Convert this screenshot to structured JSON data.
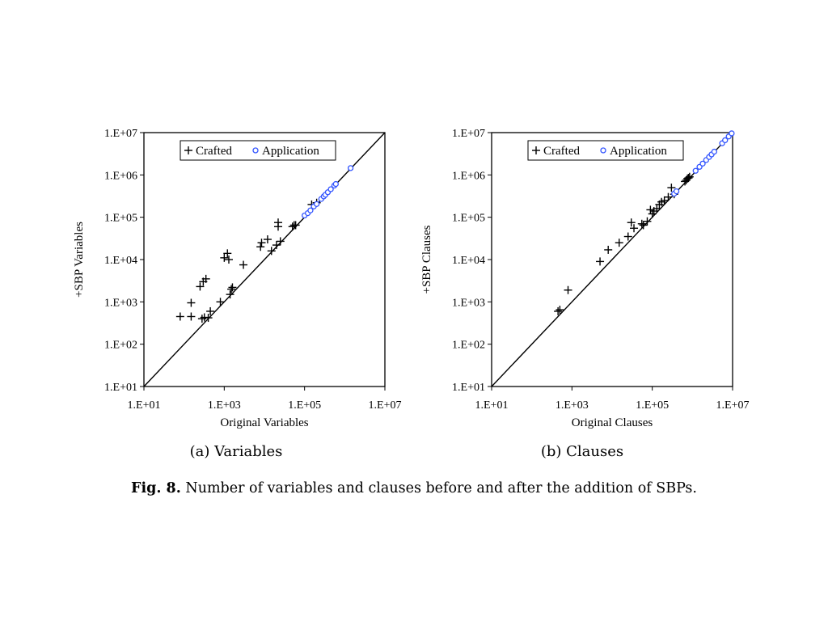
{
  "chart_data": [
    {
      "type": "scatter",
      "subcaption": "(a) Variables",
      "xlabel": "Original Variables",
      "ylabel": "+SBP Variables",
      "xscale": "log",
      "yscale": "log",
      "xlim": [
        10,
        10000000
      ],
      "ylim": [
        10,
        10000000
      ],
      "xticks": [
        "1.E+01",
        "1.E+03",
        "1.E+05",
        "1.E+07"
      ],
      "yticks": [
        "1.E+01",
        "1.E+02",
        "1.E+03",
        "1.E+04",
        "1.E+05",
        "1.E+06",
        "1.E+07"
      ],
      "diagonal": "y = x",
      "legend": {
        "position": "top",
        "entries": [
          "Crafted",
          "Application"
        ]
      },
      "series": [
        {
          "name": "Crafted",
          "marker": "plus",
          "color": "#000000",
          "points": [
            [
              80,
              450
            ],
            [
              150,
              950
            ],
            [
              150,
              450
            ],
            [
              250,
              2300
            ],
            [
              300,
              3000
            ],
            [
              350,
              3500
            ],
            [
              280,
              400
            ],
            [
              320,
              430
            ],
            [
              400,
              420
            ],
            [
              450,
              600
            ],
            [
              800,
              1000
            ],
            [
              1000,
              11000
            ],
            [
              1200,
              14000
            ],
            [
              1300,
              10000
            ],
            [
              1400,
              1500
            ],
            [
              1500,
              2000
            ],
            [
              1600,
              2200
            ],
            [
              3000,
              7500
            ],
            [
              8000,
              20000
            ],
            [
              8500,
              25000
            ],
            [
              12000,
              30000
            ],
            [
              15000,
              16000
            ],
            [
              20000,
              22000
            ],
            [
              22000,
              75000
            ],
            [
              22000,
              60000
            ],
            [
              25000,
              27000
            ],
            [
              50000,
              60000
            ],
            [
              55000,
              65000
            ],
            [
              60000,
              65000
            ],
            [
              150000,
              200000
            ],
            [
              200000,
              220000
            ]
          ]
        },
        {
          "name": "Application",
          "marker": "circle",
          "color": "#3355ff",
          "points": [
            [
              100000,
              110000
            ],
            [
              120000,
              125000
            ],
            [
              140000,
              145000
            ],
            [
              170000,
              180000
            ],
            [
              200000,
              205000
            ],
            [
              260000,
              270000
            ],
            [
              300000,
              310000
            ],
            [
              330000,
              340000
            ],
            [
              380000,
              390000
            ],
            [
              450000,
              460000
            ],
            [
              550000,
              560000
            ],
            [
              600000,
              610000
            ],
            [
              1400000,
              1450000
            ]
          ]
        }
      ]
    },
    {
      "type": "scatter",
      "subcaption": "(b) Clauses",
      "xlabel": "Original Clauses",
      "ylabel": "+SBP Clauses",
      "xscale": "log",
      "yscale": "log",
      "xlim": [
        10,
        10000000
      ],
      "ylim": [
        10,
        10000000
      ],
      "xticks": [
        "1.E+01",
        "1.E+03",
        "1.E+05",
        "1.E+07"
      ],
      "yticks": [
        "1.E+01",
        "1.E+02",
        "1.E+03",
        "1.E+04",
        "1.E+05",
        "1.E+06",
        "1.E+07"
      ],
      "diagonal": "y = x",
      "legend": {
        "position": "top",
        "entries": [
          "Crafted",
          "Application"
        ]
      },
      "series": [
        {
          "name": "Crafted",
          "marker": "plus",
          "color": "#000000",
          "points": [
            [
              450,
              600
            ],
            [
              500,
              650
            ],
            [
              800,
              1900
            ],
            [
              5000,
              9000
            ],
            [
              8000,
              17000
            ],
            [
              15000,
              25000
            ],
            [
              25000,
              35000
            ],
            [
              30000,
              75000
            ],
            [
              35000,
              55000
            ],
            [
              55000,
              70000
            ],
            [
              60000,
              65000
            ],
            [
              75000,
              80000
            ],
            [
              90000,
              150000
            ],
            [
              100000,
              120000
            ],
            [
              110000,
              140000
            ],
            [
              130000,
              160000
            ],
            [
              150000,
              200000
            ],
            [
              170000,
              230000
            ],
            [
              200000,
              250000
            ],
            [
              250000,
              300000
            ],
            [
              300000,
              500000
            ],
            [
              350000,
              350000
            ],
            [
              650000,
              700000
            ],
            [
              700000,
              750000
            ],
            [
              750000,
              820000
            ],
            [
              800000,
              850000
            ],
            [
              850000,
              900000
            ]
          ]
        },
        {
          "name": "Application",
          "marker": "circle",
          "color": "#3355ff",
          "points": [
            [
              350000,
              360000
            ],
            [
              400000,
              410000
            ],
            [
              1200000,
              1250000
            ],
            [
              1500000,
              1550000
            ],
            [
              1800000,
              1850000
            ],
            [
              2200000,
              2250000
            ],
            [
              2600000,
              2650000
            ],
            [
              3000000,
              3050000
            ],
            [
              3500000,
              3550000
            ],
            [
              5500000,
              5600000
            ],
            [
              6500000,
              6600000
            ],
            [
              8000000,
              8100000
            ],
            [
              9500000,
              9600000
            ]
          ]
        }
      ]
    }
  ],
  "caption": {
    "label": "Fig. 8.",
    "text": "Number of variables and clauses before and after the addition of SBPs."
  }
}
